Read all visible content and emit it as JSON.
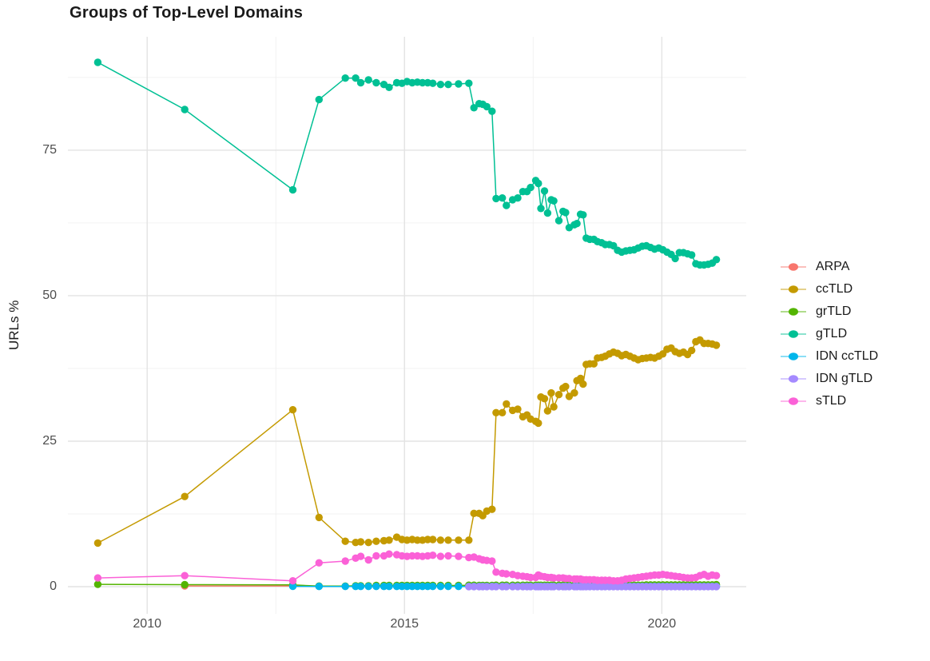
{
  "chart_data": {
    "type": "line",
    "title": "Groups of Top-Level Domains",
    "xlabel": "",
    "ylabel": "URLs %",
    "legend_position": "right",
    "grid": true,
    "xlim": [
      2008.46,
      2021.64
    ],
    "ylim": [
      -4.67,
      94.5
    ],
    "xticks": {
      "values": [
        2010,
        2015,
        2020
      ],
      "labels": [
        "2010",
        "2015",
        "2020"
      ]
    },
    "yticks": {
      "values": [
        0,
        25,
        50,
        75
      ],
      "labels": [
        "0",
        "25",
        "50",
        "75"
      ]
    },
    "x_minor_gridlines": [
      2012.5,
      2017.5
    ],
    "y_minor_gridlines": [
      12.5,
      37.5,
      62.5,
      87.5
    ],
    "x_dense": [
      2013.85,
      2014.05,
      2014.15,
      2014.3,
      2014.45,
      2014.6,
      2014.7,
      2014.85,
      2014.95,
      2015.05,
      2015.15,
      2015.25,
      2015.35,
      2015.45,
      2015.55,
      2015.7,
      2015.85,
      2016.05,
      2016.25,
      2016.35,
      2016.45,
      2016.52,
      2016.6,
      2016.7,
      2016.78,
      2016.9,
      2016.98,
      2017.1,
      2017.2,
      2017.3,
      2017.38,
      2017.45,
      2017.55,
      2017.6,
      2017.65,
      2017.72,
      2017.78,
      2017.85,
      2017.9,
      2018.0,
      2018.08,
      2018.13,
      2018.2,
      2018.3,
      2018.35,
      2018.42,
      2018.47,
      2018.53,
      2018.6,
      2018.68,
      2018.75,
      2018.83,
      2018.9,
      2018.98,
      2019.06,
      2019.14,
      2019.22,
      2019.3,
      2019.38,
      2019.46,
      2019.54,
      2019.62,
      2019.7,
      2019.78,
      2019.86,
      2019.94,
      2020.02,
      2020.1,
      2020.18,
      2020.26,
      2020.34,
      2020.42,
      2020.5,
      2020.58,
      2020.66,
      2020.74,
      2020.82,
      2020.9,
      2020.98,
      2021.06
    ],
    "series": [
      {
        "name": "ARPA",
        "color": "#F8766D",
        "head": [
          [
            2010.73,
            0.12
          ],
          [
            2012.83,
            0.12
          ],
          [
            2013.34,
            0.08
          ]
        ]
      },
      {
        "name": "ccTLD",
        "color": "#C49A00",
        "head": [
          [
            2009.04,
            7.5
          ],
          [
            2010.73,
            15.5
          ],
          [
            2012.83,
            30.4
          ],
          [
            2013.34,
            11.9
          ]
        ],
        "y_dense": [
          7.8,
          7.6,
          7.7,
          7.6,
          7.8,
          7.9,
          8.0,
          8.5,
          8.1,
          8.0,
          8.1,
          8.0,
          8.0,
          8.1,
          8.1,
          8.0,
          8.0,
          8.0,
          8.0,
          12.6,
          12.6,
          12.2,
          13.0,
          13.3,
          29.9,
          29.9,
          31.4,
          30.3,
          30.5,
          29.2,
          29.5,
          28.8,
          28.4,
          28.1,
          32.6,
          32.3,
          30.2,
          33.3,
          30.9,
          33.0,
          34.1,
          34.4,
          32.7,
          33.3,
          35.4,
          35.8,
          34.8,
          38.2,
          38.3,
          38.3,
          39.3,
          39.4,
          39.6,
          40.0,
          40.3,
          40.1,
          39.7,
          39.9,
          39.6,
          39.3,
          39.0,
          39.2,
          39.3,
          39.4,
          39.3,
          39.6,
          40.0,
          40.8,
          41.0,
          40.4,
          40.1,
          40.3,
          39.9,
          40.6,
          42.1,
          42.4,
          41.8,
          41.8,
          41.7,
          41.5
        ]
      },
      {
        "name": "grTLD",
        "color": "#53B400",
        "head": [
          [
            2009.04,
            0.4
          ],
          [
            2010.73,
            0.35
          ],
          [
            2012.83,
            0.3
          ],
          [
            2013.34,
            0.1
          ]
        ],
        "y_dense": [
          0.1,
          0.15,
          0.15,
          0.15,
          0.2,
          0.2,
          0.2,
          0.2,
          0.2,
          0.2,
          0.2,
          0.2,
          0.2,
          0.2,
          0.2,
          0.2,
          0.2,
          0.2,
          0.25,
          0.25,
          0.2,
          0.2,
          0.2,
          0.2,
          0.25,
          0.25,
          0.25,
          0.25,
          0.25,
          0.25,
          0.25,
          0.25,
          0.25,
          0.25,
          0.25,
          0.25,
          0.25,
          0.25,
          0.25,
          0.25,
          0.25,
          0.25,
          0.25,
          0.25,
          0.25,
          0.25,
          0.25,
          0.25,
          0.25,
          0.25,
          0.25,
          0.25,
          0.25,
          0.25,
          0.25,
          0.25,
          0.25,
          0.25,
          0.25,
          0.25,
          0.25,
          0.25,
          0.3,
          0.3,
          0.3,
          0.3,
          0.3,
          0.3,
          0.3,
          0.3,
          0.3,
          0.3,
          0.3,
          0.3,
          0.3,
          0.3,
          0.3,
          0.3,
          0.3,
          0.35
        ]
      },
      {
        "name": "gTLD",
        "color": "#00C094",
        "head": [
          [
            2009.04,
            90.1
          ],
          [
            2010.73,
            82.0
          ],
          [
            2012.83,
            68.2
          ],
          [
            2013.34,
            83.7
          ]
        ],
        "y_dense": [
          87.4,
          87.4,
          86.6,
          87.1,
          86.6,
          86.3,
          85.8,
          86.6,
          86.5,
          86.8,
          86.6,
          86.7,
          86.6,
          86.6,
          86.5,
          86.3,
          86.3,
          86.4,
          86.5,
          82.3,
          83.0,
          82.9,
          82.5,
          81.7,
          66.7,
          66.8,
          65.5,
          66.5,
          66.8,
          67.9,
          67.9,
          68.6,
          69.8,
          69.3,
          65.0,
          68.0,
          64.2,
          66.5,
          66.3,
          62.9,
          64.5,
          64.3,
          61.7,
          62.2,
          62.4,
          64.0,
          63.9,
          59.9,
          59.7,
          59.7,
          59.3,
          59.1,
          58.8,
          58.8,
          58.6,
          57.8,
          57.5,
          57.7,
          57.8,
          57.9,
          58.2,
          58.5,
          58.6,
          58.3,
          58.0,
          58.2,
          57.9,
          57.5,
          57.1,
          56.4,
          57.4,
          57.4,
          57.2,
          57.0,
          55.5,
          55.3,
          55.3,
          55.4,
          55.6,
          56.2
        ]
      },
      {
        "name": "IDN ccTLD",
        "color": "#00B6EB",
        "head": [
          [
            2012.83,
            0.05
          ],
          [
            2013.34,
            0.04
          ]
        ],
        "y_dense": [
          0.04,
          0.04,
          0.04,
          0.04,
          0.04,
          0.04,
          0.04,
          0.04,
          0.04,
          0.04,
          0.04,
          0.04,
          0.04,
          0.04,
          0.04,
          0.04,
          0.04,
          0.04,
          0.04,
          0.04,
          0.04,
          0.04,
          0.04,
          0.04,
          0.04,
          0.04,
          0.04,
          0.04,
          0.04,
          0.04,
          0.04,
          0.04,
          0.04,
          0.04,
          0.04,
          0.04,
          0.04,
          0.04,
          0.04,
          0.04,
          0.04,
          0.04,
          0.04,
          0.04,
          0.04,
          0.04,
          0.04,
          0.04,
          0.04,
          0.04,
          0.04,
          0.04,
          0.04,
          0.04,
          0.04,
          0.04,
          0.04,
          0.04,
          0.04,
          0.04,
          0.04,
          0.04,
          0.04,
          0.04,
          0.04,
          0.04,
          0.04,
          0.04,
          0.04,
          0.04,
          0.04,
          0.04,
          0.04,
          0.04,
          0.04,
          0.04,
          0.04,
          0.04,
          0.04,
          0.04
        ]
      },
      {
        "name": "IDN gTLD",
        "color": "#A58AFF",
        "head": [],
        "y_dense": [
          null,
          null,
          null,
          null,
          null,
          null,
          null,
          null,
          null,
          null,
          null,
          null,
          null,
          null,
          null,
          null,
          null,
          null,
          0.01,
          0.01,
          0.01,
          0.01,
          0.01,
          0.01,
          0.01,
          0.01,
          0.01,
          0.01,
          0.01,
          0.01,
          0.01,
          0.01,
          0.01,
          0.01,
          0.01,
          0.01,
          0.01,
          0.01,
          0.01,
          0.01,
          0.01,
          0.01,
          0.01,
          0.01,
          0.01,
          0.01,
          0.01,
          0.01,
          0.01,
          0.01,
          0.01,
          0.01,
          0.01,
          0.01,
          0.01,
          0.01,
          0.01,
          0.01,
          0.01,
          0.01,
          0.01,
          0.01,
          0.01,
          0.01,
          0.01,
          0.01,
          0.01,
          0.01,
          0.01,
          0.01,
          0.01,
          0.01,
          0.01,
          0.01,
          0.01,
          0.01,
          0.01,
          0.01,
          0.01,
          0.01
        ]
      },
      {
        "name": "sTLD",
        "color": "#FB61D7",
        "head": [
          [
            2009.04,
            1.5
          ],
          [
            2010.73,
            1.9
          ],
          [
            2012.83,
            1.0
          ],
          [
            2013.34,
            4.1
          ]
        ],
        "y_dense": [
          4.4,
          4.9,
          5.2,
          4.6,
          5.3,
          5.3,
          5.6,
          5.5,
          5.3,
          5.2,
          5.3,
          5.3,
          5.2,
          5.3,
          5.4,
          5.2,
          5.3,
          5.2,
          5.0,
          5.1,
          4.8,
          4.6,
          4.5,
          4.4,
          2.5,
          2.3,
          2.2,
          2.1,
          1.9,
          1.8,
          1.7,
          1.6,
          1.6,
          2.0,
          1.8,
          1.7,
          1.6,
          1.6,
          1.5,
          1.5,
          1.5,
          1.4,
          1.4,
          1.3,
          1.3,
          1.3,
          1.2,
          1.2,
          1.2,
          1.2,
          1.1,
          1.1,
          1.1,
          1.1,
          1.0,
          1.0,
          1.1,
          1.3,
          1.4,
          1.5,
          1.6,
          1.7,
          1.8,
          1.9,
          2.0,
          2.0,
          2.1,
          2.0,
          1.9,
          1.8,
          1.7,
          1.6,
          1.5,
          1.5,
          1.6,
          1.9,
          2.1,
          1.8,
          2.0,
          1.9
        ]
      }
    ]
  },
  "legend": {
    "items": [
      {
        "label": "ARPA",
        "color": "#F8766D"
      },
      {
        "label": "ccTLD",
        "color": "#C49A00"
      },
      {
        "label": "grTLD",
        "color": "#53B400"
      },
      {
        "label": "gTLD",
        "color": "#00C094"
      },
      {
        "label": "IDN ccTLD",
        "color": "#00B6EB"
      },
      {
        "label": "IDN gTLD",
        "color": "#A58AFF"
      },
      {
        "label": "sTLD",
        "color": "#FB61D7"
      }
    ]
  },
  "style": {
    "major_grid_color": "#e3e3e3",
    "minor_grid_color": "#f0f0f0",
    "tick_label_color": "#4d4d4d",
    "text_color": "#1a1a1a",
    "background": "#ffffff"
  }
}
